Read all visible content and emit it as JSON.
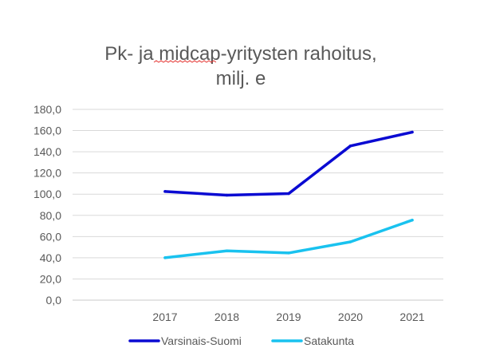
{
  "chart_data": {
    "type": "line",
    "title_lines": [
      "Pk- ja midcap-yritysten rahoitus,",
      "milj. e"
    ],
    "categories": [
      "2017",
      "2018",
      "2019",
      "2020",
      "2021"
    ],
    "series": [
      {
        "name": "Varsinais-Suomi",
        "color": "#0a0ad2",
        "values": [
          102.5,
          99.0,
          100.5,
          145.5,
          158.5
        ]
      },
      {
        "name": "Satakunta",
        "color": "#19c2ef",
        "values": [
          40.0,
          46.5,
          44.5,
          55.0,
          75.5
        ]
      }
    ],
    "xlabel": "",
    "ylabel": "",
    "ylim": [
      0,
      180
    ],
    "yticks": [
      "0,0",
      "20,0",
      "40,0",
      "60,0",
      "80,0",
      "100,0",
      "120,0",
      "140,0",
      "160,0",
      "180,0"
    ],
    "grid": true,
    "legend_position": "bottom"
  }
}
